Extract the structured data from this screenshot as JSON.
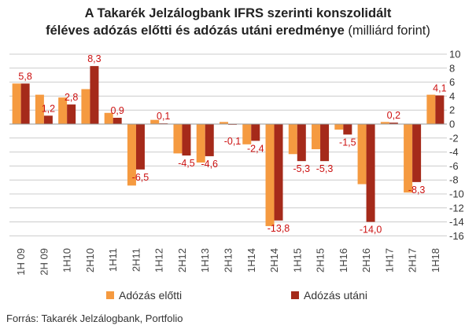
{
  "title": {
    "line1": "A Takarék Jelzálogbank IFRS szerinti konszolidált",
    "line2_bold": "féléves adózás előtti és adózás utáni eredménye",
    "line2_normal": "(milliárd forint)"
  },
  "source": "Forrás: Takarék Jelzálogbank, Portfolio",
  "colors": {
    "before_tax": "#F59A40",
    "after_tax": "#A52A1A",
    "label": "#CC1111",
    "grid": "#cccccc"
  },
  "chart_data": {
    "type": "bar",
    "categories": [
      "1H 09",
      "2H 09",
      "1H10",
      "2H10",
      "1H11",
      "2H11",
      "1H12",
      "2H12",
      "1H13",
      "2H13",
      "1H14",
      "2H14",
      "1H15",
      "2H15",
      "1H16",
      "2H16",
      "1H17",
      "2H17",
      "1H18"
    ],
    "series": [
      {
        "name": "Adózás előtti",
        "values": [
          5.8,
          4.2,
          3.8,
          5.0,
          1.6,
          -8.8,
          0.6,
          -4.2,
          -5.5,
          0.3,
          -2.9,
          -14.6,
          -4.3,
          -3.6,
          -0.8,
          -8.6,
          0.3,
          -9.8,
          4.2
        ]
      },
      {
        "name": "Adózás utáni",
        "values": [
          5.8,
          1.2,
          2.8,
          8.3,
          0.9,
          -6.5,
          0.1,
          -4.5,
          -4.6,
          -0.1,
          -2.4,
          -13.8,
          -5.3,
          -5.3,
          -1.5,
          -14.0,
          0.2,
          -8.3,
          4.1
        ]
      }
    ],
    "data_labels": [
      "5,8",
      "1,2",
      "2,8",
      "8,3",
      "0,9",
      "-6,5",
      "0,1",
      "-4,5",
      "-4,6",
      "-0,1",
      "-2,4",
      "-13,8",
      "-5,3",
      "-5,3",
      "-1,5",
      "-14,0",
      "0,2",
      "-8,3",
      "4,1"
    ],
    "yticks": [
      "10",
      "8",
      "6",
      "4",
      "2",
      "0",
      "-2",
      "-4",
      "-6",
      "-8",
      "-10",
      "-12",
      "-14",
      "-16"
    ],
    "ylim": [
      -16,
      10
    ],
    "grid": "horizontal",
    "legend_position": "bottom"
  }
}
